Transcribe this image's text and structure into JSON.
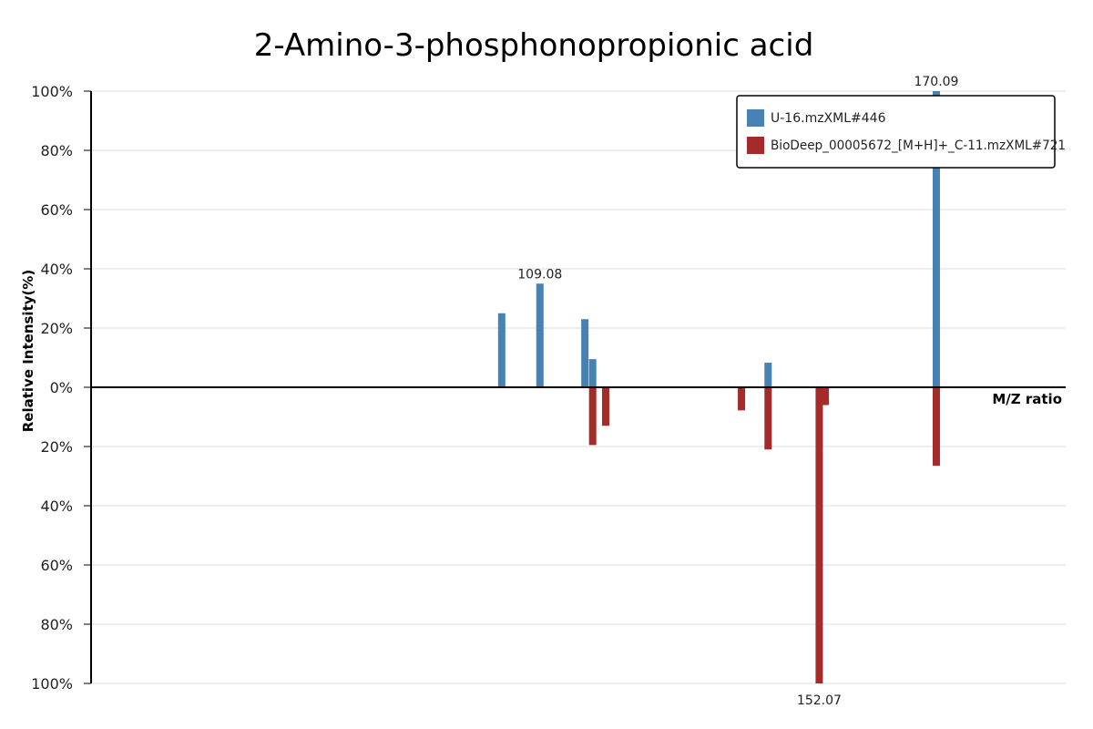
{
  "chart_data": {
    "type": "bar",
    "title": "2-Amino-3-phosphonopropionic acid",
    "xlabel": "M/Z ratio",
    "ylabel": "Relative Intensity(%)",
    "xlim": [
      40,
      190
    ],
    "ylim": [
      -100,
      100
    ],
    "y_ticks": [
      "100%",
      "80%",
      "60%",
      "40%",
      "20%",
      "0%",
      "20%",
      "40%",
      "60%",
      "80%",
      "100%"
    ],
    "grid": true,
    "legend_position": "top-right",
    "series": [
      {
        "name": "U-16.mzXML#446",
        "color": "#4682b4",
        "direction": "up",
        "peaks": [
          {
            "x": 103.2,
            "y": 25
          },
          {
            "x": 109.08,
            "y": 35
          },
          {
            "x": 116.0,
            "y": 23
          },
          {
            "x": 117.2,
            "y": 9.5
          },
          {
            "x": 144.2,
            "y": 8.3
          },
          {
            "x": 170.09,
            "y": 100
          }
        ]
      },
      {
        "name": "BioDeep_00005672_[M+H]+_C-11.mzXML#721",
        "color": "#a52a2a",
        "direction": "down",
        "peaks": [
          {
            "x": 117.2,
            "y": 19.5
          },
          {
            "x": 119.2,
            "y": 13
          },
          {
            "x": 140.1,
            "y": 7.8
          },
          {
            "x": 144.2,
            "y": 21
          },
          {
            "x": 152.07,
            "y": 100
          },
          {
            "x": 153.0,
            "y": 6
          },
          {
            "x": 170.09,
            "y": 26.5
          }
        ]
      }
    ],
    "peak_labels": [
      {
        "text": "109.08",
        "series": 0,
        "x": 109.08
      },
      {
        "text": "170.09",
        "series": 0,
        "x": 170.09
      },
      {
        "text": "152.07",
        "series": 1,
        "x": 152.07
      }
    ]
  }
}
